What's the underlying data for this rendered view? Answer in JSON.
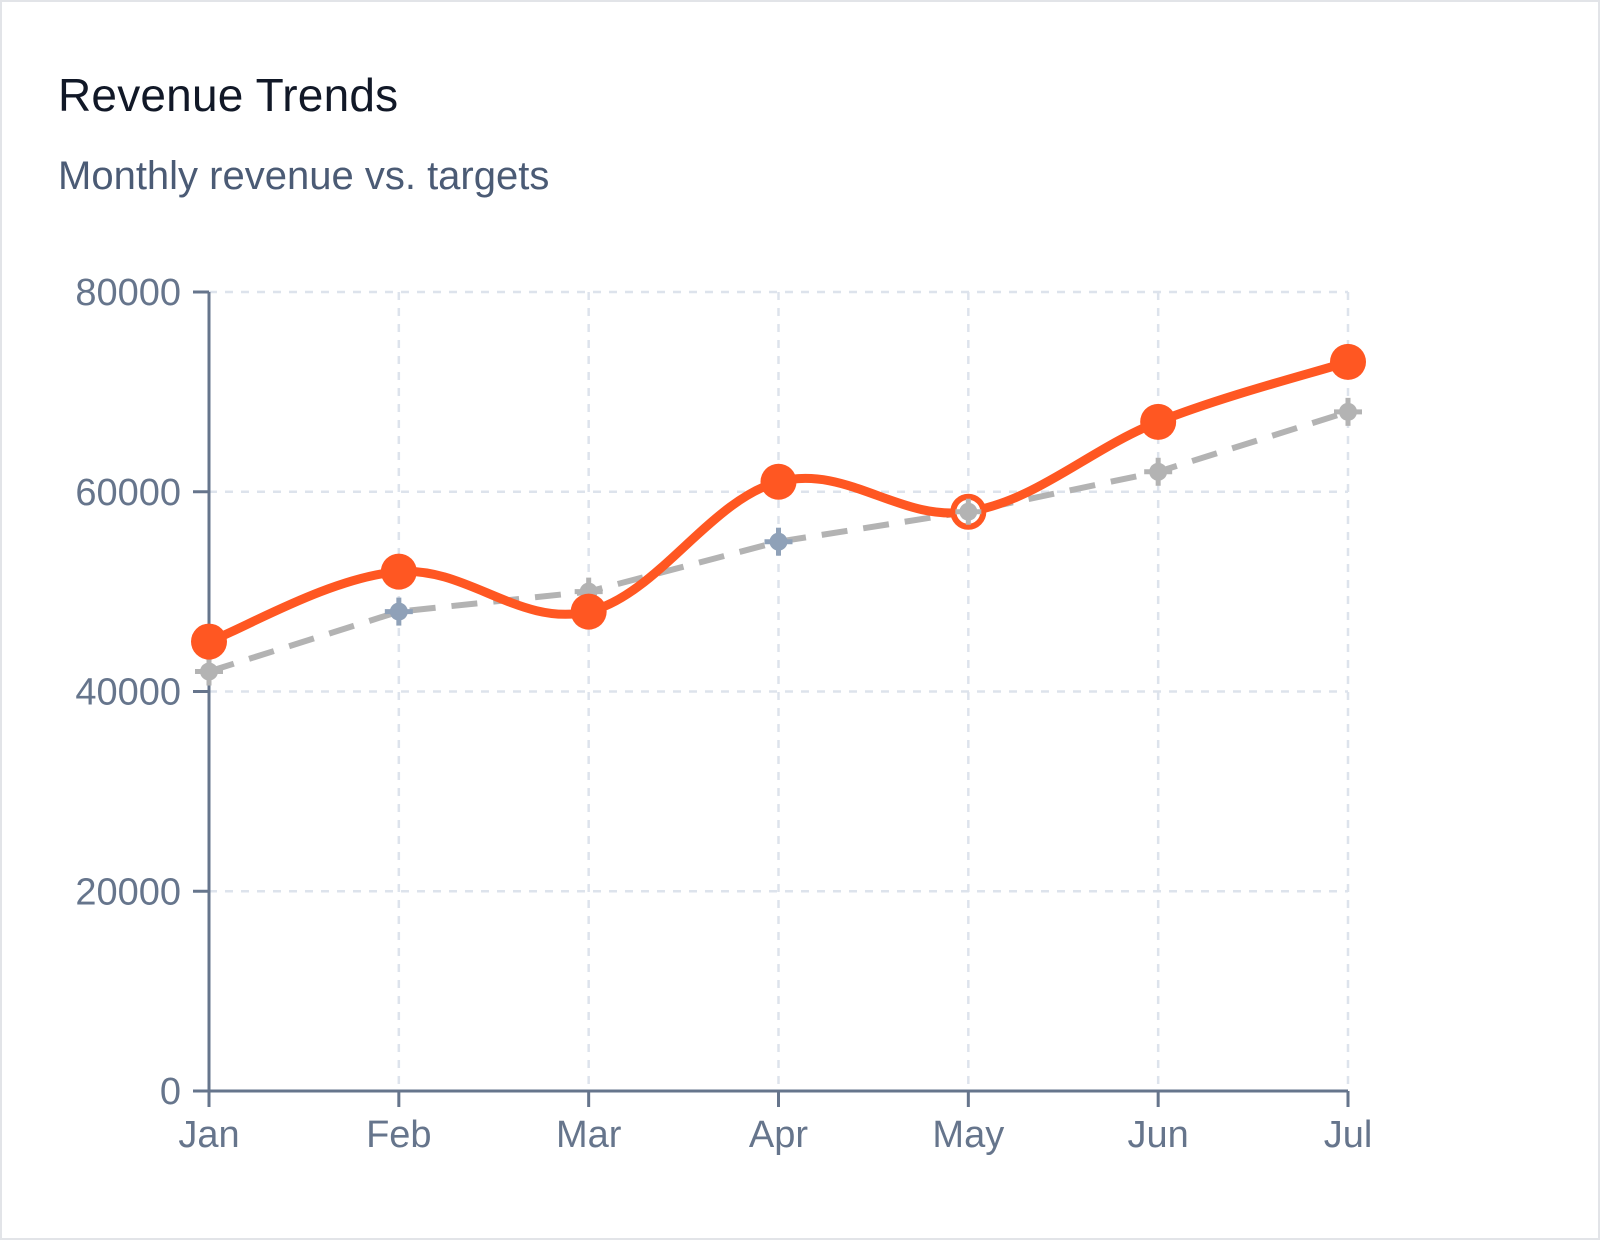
{
  "title": "Revenue Trends",
  "subtitle": "Monthly revenue vs. targets",
  "chart_data": {
    "type": "line",
    "title": "Revenue Trends",
    "subtitle": "Monthly revenue vs. targets",
    "categories": [
      "Jan",
      "Feb",
      "Mar",
      "Apr",
      "May",
      "Jun",
      "Jul"
    ],
    "ylim": [
      0,
      80000
    ],
    "yticks": [
      0,
      20000,
      40000,
      60000,
      80000
    ],
    "grid": true,
    "series": [
      {
        "values": [
          45000,
          52000,
          48000,
          61000,
          58000,
          67000,
          73000
        ],
        "color": "#ff5722",
        "style": "solid-smooth"
      },
      {
        "values": [
          42000,
          48000,
          50000,
          55000,
          58000,
          62000,
          68000
        ],
        "color": "#b3b3b3",
        "style": "dashed"
      }
    ],
    "colors": {
      "axis": "#66758c",
      "grid": "#dde3ec",
      "target_marker_alt": "#8fa1b8"
    }
  }
}
